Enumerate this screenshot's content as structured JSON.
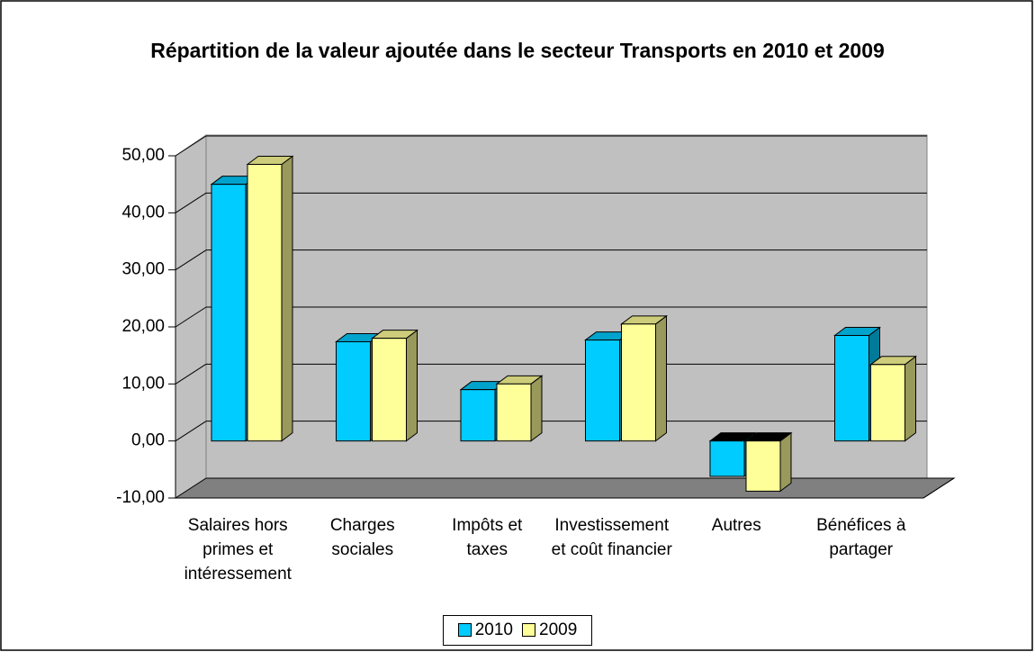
{
  "chart_data": {
    "type": "bar3d",
    "title": "Répartition de la valeur ajoutée dans le secteur Transports en 2010 et 2009",
    "categories": [
      "Salaires hors primes et intéressement",
      "Charges sociales",
      "Impôts et taxes",
      "Investissement et coût financier",
      "Autres",
      "Bénéfices à partager"
    ],
    "series": [
      {
        "name": "2010",
        "color": "#00ccff",
        "values": [
          45.0,
          17.4,
          9.0,
          17.7,
          -6.2,
          18.5
        ]
      },
      {
        "name": "2009",
        "color": "#ffff99",
        "values": [
          48.5,
          18.0,
          10.0,
          20.5,
          -8.8,
          13.4
        ]
      }
    ],
    "ylim": [
      -10,
      50
    ],
    "yticks": [
      {
        "value": -10,
        "label": "-10,00"
      },
      {
        "value": 0,
        "label": "0,00"
      },
      {
        "value": 10,
        "label": "10,00"
      },
      {
        "value": 20,
        "label": "20,00"
      },
      {
        "value": 30,
        "label": "30,00"
      },
      {
        "value": 40,
        "label": "40,00"
      },
      {
        "value": 50,
        "label": "50,00"
      }
    ],
    "grid": true,
    "legend": "bottom"
  }
}
